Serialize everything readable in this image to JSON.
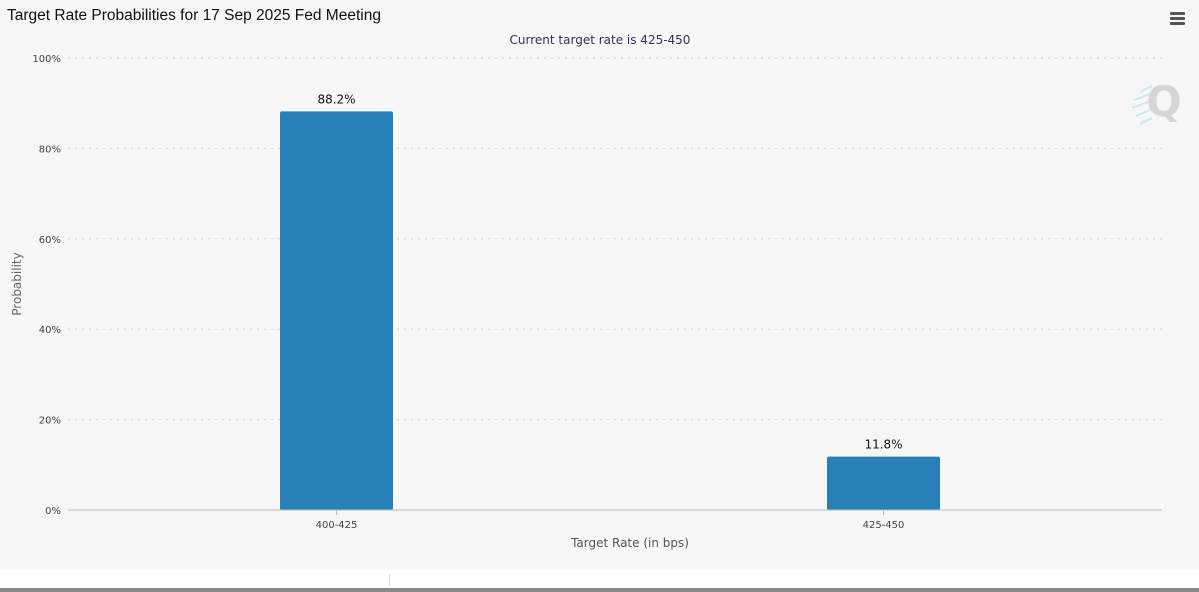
{
  "header": {
    "title": "Target Rate Probabilities for 17 Sep 2025 Fed Meeting",
    "menu_icon": "hamburger-menu-icon"
  },
  "watermark": {
    "text": "Q",
    "icon": "cme-q-logo-icon"
  },
  "chart_data": {
    "type": "bar",
    "title": "",
    "subtitle": "Current target rate is 425-450",
    "xlabel": "Target Rate (in bps)",
    "ylabel": "Probability",
    "categories": [
      "400-425",
      "425-450"
    ],
    "values": [
      88.2,
      11.8
    ],
    "data_labels": [
      "88.2%",
      "11.8%"
    ],
    "ylim": [
      0,
      100
    ],
    "yticks": [
      0,
      20,
      40,
      60,
      80,
      100
    ],
    "ytick_labels": [
      "0%",
      "20%",
      "40%",
      "60%",
      "80%",
      "100%"
    ],
    "grid": true,
    "legend": "none",
    "bar_color": "#2980b9"
  }
}
